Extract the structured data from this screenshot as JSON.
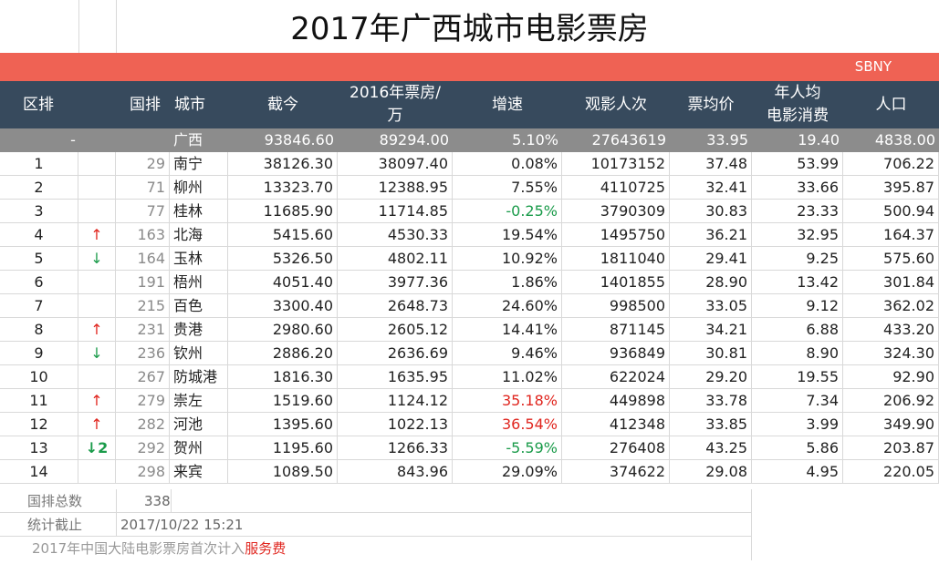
{
  "title": "2017年广西城市电影票房",
  "brand": "SBNY",
  "headers": {
    "region_rank": "区排",
    "national_rank": "国排",
    "city": "城市",
    "to_date": "截今",
    "box2016_line1": "2016年票房/",
    "box2016_line2": "万",
    "growth": "增速",
    "viewers": "观影人次",
    "avg_price": "票均价",
    "per_capita_line1": "年人均",
    "per_capita_line2": "电影消费",
    "population": "人口"
  },
  "summary": {
    "rank": "-",
    "city": "广西",
    "to_date": "93846.60",
    "box2016": "89294.00",
    "growth": "5.10%",
    "viewers": "27643619",
    "avg_price": "33.95",
    "per_capita": "19.40",
    "population": "4838.00"
  },
  "rows": [
    {
      "rank": "1",
      "arrow": "",
      "nrank": "29",
      "city": "南宁",
      "to_date": "38126.30",
      "box2016": "38097.40",
      "growth": "0.08%",
      "viewers": "10173152",
      "avg_price": "37.48",
      "per_capita": "53.99",
      "population": "706.22"
    },
    {
      "rank": "2",
      "arrow": "",
      "nrank": "71",
      "city": "柳州",
      "to_date": "13323.70",
      "box2016": "12388.95",
      "growth": "7.55%",
      "viewers": "4110725",
      "avg_price": "32.41",
      "per_capita": "33.66",
      "population": "395.87"
    },
    {
      "rank": "3",
      "arrow": "",
      "nrank": "77",
      "city": "桂林",
      "to_date": "11685.90",
      "box2016": "11714.85",
      "growth": "-0.25%",
      "viewers": "3790309",
      "avg_price": "30.83",
      "per_capita": "23.33",
      "population": "500.94"
    },
    {
      "rank": "4",
      "arrow": "↑",
      "nrank": "163",
      "city": "北海",
      "to_date": "5415.60",
      "box2016": "4530.33",
      "growth": "19.54%",
      "viewers": "1495750",
      "avg_price": "36.21",
      "per_capita": "32.95",
      "population": "164.37"
    },
    {
      "rank": "5",
      "arrow": "↓",
      "nrank": "164",
      "city": "玉林",
      "to_date": "5326.50",
      "box2016": "4802.11",
      "growth": "10.92%",
      "viewers": "1811040",
      "avg_price": "29.41",
      "per_capita": "9.25",
      "population": "575.60"
    },
    {
      "rank": "6",
      "arrow": "",
      "nrank": "191",
      "city": "梧州",
      "to_date": "4051.40",
      "box2016": "3977.36",
      "growth": "1.86%",
      "viewers": "1401855",
      "avg_price": "28.90",
      "per_capita": "13.42",
      "population": "301.84"
    },
    {
      "rank": "7",
      "arrow": "",
      "nrank": "215",
      "city": "百色",
      "to_date": "3300.40",
      "box2016": "2648.73",
      "growth": "24.60%",
      "viewers": "998500",
      "avg_price": "33.05",
      "per_capita": "9.12",
      "population": "362.02"
    },
    {
      "rank": "8",
      "arrow": "↑",
      "nrank": "231",
      "city": "贵港",
      "to_date": "2980.60",
      "box2016": "2605.12",
      "growth": "14.41%",
      "viewers": "871145",
      "avg_price": "34.21",
      "per_capita": "6.88",
      "population": "433.20"
    },
    {
      "rank": "9",
      "arrow": "↓",
      "nrank": "236",
      "city": "钦州",
      "to_date": "2886.20",
      "box2016": "2636.69",
      "growth": "9.46%",
      "viewers": "936849",
      "avg_price": "30.81",
      "per_capita": "8.90",
      "population": "324.30"
    },
    {
      "rank": "10",
      "arrow": "",
      "nrank": "267",
      "city": "防城港",
      "to_date": "1816.30",
      "box2016": "1635.95",
      "growth": "11.02%",
      "viewers": "622024",
      "avg_price": "29.20",
      "per_capita": "19.55",
      "population": "92.90"
    },
    {
      "rank": "11",
      "arrow": "↑",
      "nrank": "279",
      "city": "崇左",
      "to_date": "1519.60",
      "box2016": "1124.12",
      "growth": "35.18%",
      "viewers": "449898",
      "avg_price": "33.78",
      "per_capita": "7.34",
      "population": "206.92"
    },
    {
      "rank": "12",
      "arrow": "↑",
      "nrank": "282",
      "city": "河池",
      "to_date": "1395.60",
      "box2016": "1022.13",
      "growth": "36.54%",
      "viewers": "412348",
      "avg_price": "33.85",
      "per_capita": "3.99",
      "population": "349.90"
    },
    {
      "rank": "13",
      "arrow": "↓2",
      "nrank": "292",
      "city": "贺州",
      "to_date": "1195.60",
      "box2016": "1266.33",
      "growth": "-5.59%",
      "viewers": "276408",
      "avg_price": "43.25",
      "per_capita": "5.86",
      "population": "203.87"
    },
    {
      "rank": "14",
      "arrow": "",
      "nrank": "298",
      "city": "来宾",
      "to_date": "1089.50",
      "box2016": "843.96",
      "growth": "29.09%",
      "viewers": "374622",
      "avg_price": "29.08",
      "per_capita": "4.95",
      "population": "220.05"
    }
  ],
  "footer": {
    "total_label": "国排总数",
    "total_value": "338",
    "cutoff_label": "统计截止",
    "cutoff_value": "2017/10/22 15:21",
    "note_prefix": "2017年中国大陆电影票房首次计入",
    "note_highlight": "服务费"
  },
  "colors": {
    "band": "#ef6254",
    "header_bg": "#374a5d",
    "summary_bg": "#8c8c8c",
    "up_arrow": "#e0261f",
    "down_arrow": "#1a9b4a",
    "negative_growth": "#1a9b4a",
    "high_growth": "#e0261f"
  }
}
